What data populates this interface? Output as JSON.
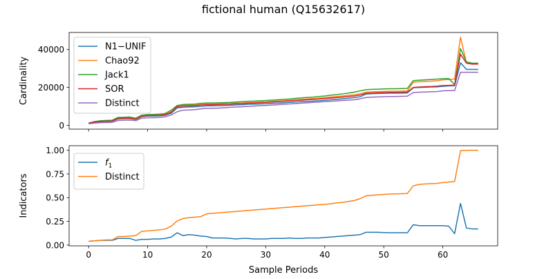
{
  "title": "fictional human (Q15632617)",
  "chart_data": [
    {
      "type": "line",
      "xlabel": "",
      "ylabel": "Cardinality",
      "xlim": [
        -3.3,
        69.3
      ],
      "ylim": [
        -2000,
        49000
      ],
      "xticks": [
        0,
        10,
        20,
        30,
        40,
        50,
        60
      ],
      "yticks": [
        0,
        20000,
        40000
      ],
      "ytick_labels": [
        "0",
        "20000",
        "40000"
      ],
      "show_xtick_labels": false,
      "legend": "top-left",
      "x": [
        0,
        1,
        2,
        3,
        4,
        5,
        6,
        7,
        8,
        9,
        10,
        11,
        12,
        13,
        14,
        15,
        16,
        17,
        18,
        19,
        20,
        21,
        22,
        23,
        24,
        25,
        26,
        27,
        28,
        29,
        30,
        31,
        32,
        33,
        34,
        35,
        36,
        37,
        38,
        39,
        40,
        41,
        42,
        43,
        44,
        45,
        46,
        47,
        48,
        49,
        50,
        51,
        52,
        53,
        54,
        55,
        56,
        57,
        58,
        59,
        60,
        61,
        62,
        63,
        64,
        65,
        66
      ],
      "series": [
        {
          "name": "N1−UNIF",
          "color": "#1f77b4",
          "values": [
            1000,
            1700,
            1900,
            2100,
            2200,
            3400,
            3500,
            3600,
            3100,
            4600,
            4900,
            4900,
            5000,
            5300,
            6400,
            9200,
            9500,
            9700,
            9800,
            10000,
            10300,
            10300,
            10400,
            10500,
            10600,
            10800,
            10900,
            11100,
            11200,
            11300,
            11400,
            11600,
            11700,
            11900,
            12100,
            12300,
            12500,
            12600,
            12800,
            13000,
            13200,
            13500,
            13700,
            14000,
            14300,
            14600,
            15100,
            16500,
            16700,
            16800,
            16900,
            17000,
            17000,
            17000,
            17100,
            19800,
            20000,
            20100,
            20200,
            20300,
            20600,
            20800,
            20900,
            33000,
            29500,
            29500,
            29500
          ]
        },
        {
          "name": "Chao92",
          "color": "#ff7f0e",
          "values": [
            1100,
            1800,
            2100,
            2300,
            2400,
            3800,
            3900,
            4000,
            3300,
            5000,
            5300,
            5400,
            5500,
            5800,
            7200,
            10000,
            10500,
            10600,
            10700,
            11000,
            11200,
            11200,
            11300,
            11400,
            11500,
            11700,
            11800,
            12000,
            12100,
            12300,
            12400,
            12600,
            12800,
            13000,
            13200,
            13500,
            13700,
            13900,
            14100,
            14300,
            14600,
            14900,
            15200,
            15500,
            15800,
            16100,
            16700,
            17500,
            17700,
            17800,
            17900,
            18000,
            18000,
            18100,
            18200,
            22800,
            23000,
            23200,
            23300,
            23500,
            24000,
            24200,
            24400,
            46500,
            33000,
            32500,
            32500
          ]
        },
        {
          "name": "Jack1",
          "color": "#2ca02c",
          "values": [
            1200,
            2000,
            2400,
            2600,
            2700,
            4200,
            4300,
            4400,
            3800,
            5400,
            5700,
            5800,
            5900,
            6300,
            8000,
            10500,
            11000,
            11100,
            11200,
            11600,
            11800,
            11800,
            11900,
            12000,
            12100,
            12300,
            12500,
            12700,
            12800,
            13000,
            13100,
            13300,
            13500,
            13700,
            13900,
            14200,
            14500,
            14700,
            14900,
            15200,
            15500,
            15900,
            16200,
            16600,
            17000,
            17500,
            18200,
            18800,
            19000,
            19100,
            19200,
            19300,
            19300,
            19400,
            19500,
            23600,
            23800,
            24000,
            24200,
            24400,
            24600,
            24700,
            21500,
            40500,
            33500,
            32800,
            32800
          ]
        },
        {
          "name": "SOR",
          "color": "#d62728",
          "values": [
            1050,
            1750,
            2000,
            2200,
            2300,
            3600,
            3700,
            3800,
            3200,
            4800,
            5100,
            5200,
            5300,
            5600,
            6900,
            9800,
            10200,
            10300,
            10400,
            10700,
            10900,
            10900,
            11000,
            11100,
            11200,
            11400,
            11500,
            11700,
            11800,
            12000,
            12100,
            12300,
            12500,
            12700,
            12900,
            13100,
            13300,
            13500,
            13700,
            13900,
            14100,
            14400,
            14600,
            14900,
            15200,
            15500,
            16000,
            16900,
            17100,
            17200,
            17300,
            17400,
            17400,
            17500,
            17600,
            20000,
            20200,
            20400,
            20500,
            20700,
            21000,
            21100,
            21200,
            37500,
            32800,
            32300,
            32300
          ]
        },
        {
          "name": "Distinct",
          "color": "#9467bd",
          "values": [
            800,
            1200,
            1400,
            1500,
            1600,
            2600,
            2700,
            2800,
            2500,
            3800,
            4000,
            4000,
            4200,
            4500,
            5500,
            7200,
            8000,
            8100,
            8300,
            8700,
            9000,
            9000,
            9100,
            9300,
            9500,
            9700,
            9800,
            10000,
            10200,
            10400,
            10500,
            10700,
            10900,
            11100,
            11300,
            11500,
            11700,
            11900,
            12100,
            12300,
            12500,
            12700,
            12900,
            13100,
            13300,
            13500,
            14000,
            14700,
            14900,
            15000,
            15100,
            15200,
            15200,
            15300,
            15400,
            17300,
            17500,
            17600,
            17700,
            17800,
            18200,
            18300,
            18300,
            28000,
            28000,
            28000,
            28000
          ]
        }
      ]
    },
    {
      "type": "line",
      "xlabel": "Sample Periods",
      "ylabel": "Indicators",
      "xlim": [
        -3.3,
        69.3
      ],
      "ylim": [
        -0.008,
        1.048
      ],
      "xticks": [
        0,
        10,
        20,
        30,
        40,
        50,
        60
      ],
      "xtick_labels": [
        "0",
        "10",
        "20",
        "30",
        "40",
        "50",
        "60"
      ],
      "yticks": [
        0.0,
        0.25,
        0.5,
        0.75,
        1.0
      ],
      "ytick_labels": [
        "0.00",
        "0.25",
        "0.50",
        "0.75",
        "1.00"
      ],
      "legend": "top-left",
      "x": [
        0,
        1,
        2,
        3,
        4,
        5,
        6,
        7,
        8,
        9,
        10,
        11,
        12,
        13,
        14,
        15,
        16,
        17,
        18,
        19,
        20,
        21,
        22,
        23,
        24,
        25,
        26,
        27,
        28,
        29,
        30,
        31,
        32,
        33,
        34,
        35,
        36,
        37,
        38,
        39,
        40,
        41,
        42,
        43,
        44,
        45,
        46,
        47,
        48,
        49,
        50,
        51,
        52,
        53,
        54,
        55,
        56,
        57,
        58,
        59,
        60,
        61,
        62,
        63,
        64,
        65,
        66
      ],
      "series": [
        {
          "name": "f",
          "name_sub": "1",
          "color": "#1f77b4",
          "values": [
            0.04,
            0.045,
            0.05,
            0.05,
            0.05,
            0.07,
            0.07,
            0.07,
            0.05,
            0.06,
            0.06,
            0.065,
            0.065,
            0.07,
            0.085,
            0.13,
            0.1,
            0.11,
            0.105,
            0.095,
            0.09,
            0.075,
            0.075,
            0.075,
            0.07,
            0.065,
            0.07,
            0.07,
            0.065,
            0.065,
            0.065,
            0.07,
            0.07,
            0.07,
            0.075,
            0.07,
            0.07,
            0.075,
            0.075,
            0.075,
            0.08,
            0.085,
            0.09,
            0.095,
            0.1,
            0.105,
            0.11,
            0.135,
            0.135,
            0.135,
            0.132,
            0.13,
            0.13,
            0.13,
            0.13,
            0.215,
            0.205,
            0.205,
            0.205,
            0.205,
            0.205,
            0.2,
            0.12,
            0.44,
            0.18,
            0.17,
            0.17
          ]
        },
        {
          "name": "Distinct",
          "color": "#ff7f0e",
          "values": [
            0.04,
            0.045,
            0.05,
            0.055,
            0.055,
            0.09,
            0.09,
            0.095,
            0.1,
            0.145,
            0.15,
            0.155,
            0.16,
            0.17,
            0.2,
            0.255,
            0.28,
            0.29,
            0.295,
            0.3,
            0.33,
            0.335,
            0.34,
            0.345,
            0.35,
            0.355,
            0.36,
            0.365,
            0.37,
            0.375,
            0.38,
            0.385,
            0.39,
            0.395,
            0.4,
            0.405,
            0.41,
            0.415,
            0.42,
            0.425,
            0.43,
            0.435,
            0.445,
            0.45,
            0.46,
            0.47,
            0.49,
            0.52,
            0.525,
            0.53,
            0.535,
            0.538,
            0.54,
            0.542,
            0.545,
            0.625,
            0.64,
            0.645,
            0.648,
            0.65,
            0.66,
            0.665,
            0.67,
            0.995,
            1.0,
            1.0,
            1.0
          ]
        }
      ]
    }
  ]
}
